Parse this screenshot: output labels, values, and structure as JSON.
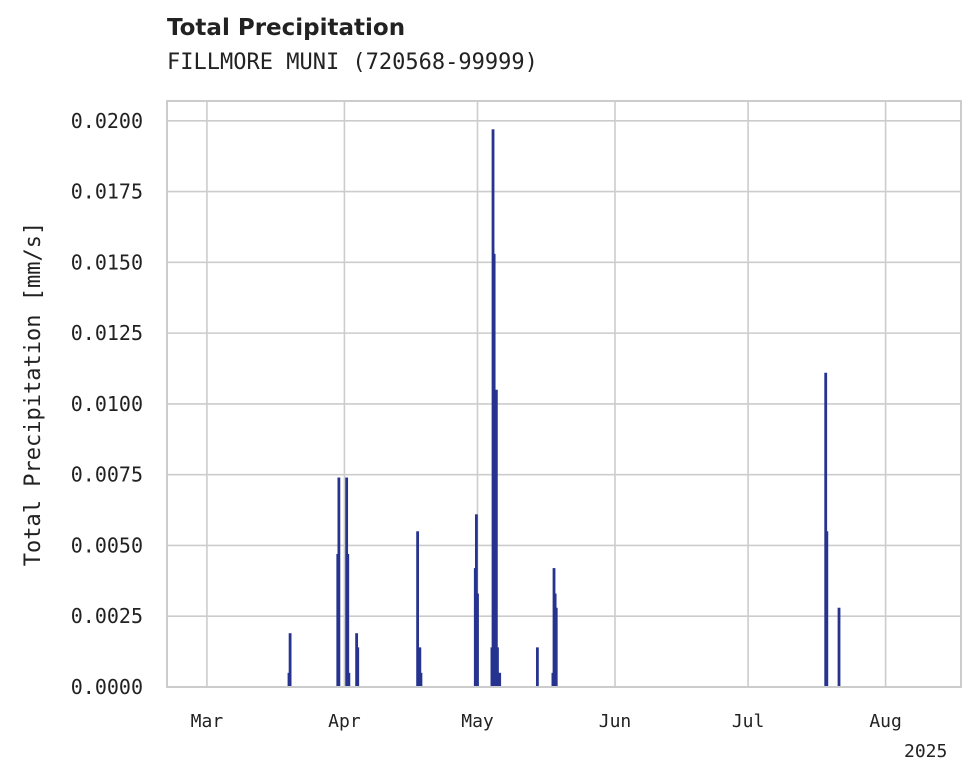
{
  "chart_data": {
    "type": "bar",
    "title": "Total Precipitation",
    "subtitle": "FILLMORE MUNI (720568-99999)",
    "ylabel": "Total Precipitation [mm/s]",
    "xlabel": "",
    "x_year_label": "2025",
    "ylim": [
      0,
      0.0207
    ],
    "xlim": [
      "2025-02-20",
      "2025-08-18"
    ],
    "yticks": [
      0.0,
      0.0025,
      0.005,
      0.0075,
      0.01,
      0.0125,
      0.015,
      0.0175,
      0.02
    ],
    "ytick_labels": [
      "0.0000",
      "0.0025",
      "0.0050",
      "0.0075",
      "0.0100",
      "0.0125",
      "0.0150",
      "0.0175",
      "0.0200"
    ],
    "xticks": [
      {
        "date": "2025-03-01",
        "label": "Mar"
      },
      {
        "date": "2025-04-01",
        "label": "Apr"
      },
      {
        "date": "2025-05-01",
        "label": "May"
      },
      {
        "date": "2025-06-01",
        "label": "Jun"
      },
      {
        "date": "2025-07-01",
        "label": "Jul"
      },
      {
        "date": "2025-08-01",
        "label": "Aug"
      }
    ],
    "grid": true,
    "color": "#26338f",
    "series": [
      {
        "values": [
          {
            "x": "2025-03-19 12:00",
            "y": 0.0005
          },
          {
            "x": "2025-03-19 18:00",
            "y": 0.0019
          },
          {
            "x": "2025-03-30 12:00",
            "y": 0.0047
          },
          {
            "x": "2025-03-30 18:00",
            "y": 0.0074
          },
          {
            "x": "2025-04-01 12:00",
            "y": 0.0074
          },
          {
            "x": "2025-04-01 18:00",
            "y": 0.0047
          },
          {
            "x": "2025-04-02 00:00",
            "y": 0.0005
          },
          {
            "x": "2025-04-03 18:00",
            "y": 0.0019
          },
          {
            "x": "2025-04-04 00:00",
            "y": 0.0014
          },
          {
            "x": "2025-04-17 12:00",
            "y": 0.0055
          },
          {
            "x": "2025-04-18 00:00",
            "y": 0.0014
          },
          {
            "x": "2025-04-18 06:00",
            "y": 0.0005
          },
          {
            "x": "2025-04-30 12:00",
            "y": 0.0042
          },
          {
            "x": "2025-04-30 18:00",
            "y": 0.0061
          },
          {
            "x": "2025-05-01 00:00",
            "y": 0.0033
          },
          {
            "x": "2025-05-04 06:00",
            "y": 0.0014
          },
          {
            "x": "2025-05-04 12:00",
            "y": 0.0197
          },
          {
            "x": "2025-05-04 18:00",
            "y": 0.0153
          },
          {
            "x": "2025-05-05 00:00",
            "y": 0.0028
          },
          {
            "x": "2025-05-05 06:00",
            "y": 0.0105
          },
          {
            "x": "2025-05-05 12:00",
            "y": 0.0014
          },
          {
            "x": "2025-05-05 18:00",
            "y": 0.0005
          },
          {
            "x": "2025-05-06 00:00",
            "y": 0.0005
          },
          {
            "x": "2025-05-14 12:00",
            "y": 0.0014
          },
          {
            "x": "2025-05-18 00:00",
            "y": 0.0005
          },
          {
            "x": "2025-05-18 06:00",
            "y": 0.0042
          },
          {
            "x": "2025-05-18 12:00",
            "y": 0.0033
          },
          {
            "x": "2025-05-18 18:00",
            "y": 0.0028
          },
          {
            "x": "2025-07-18 12:00",
            "y": 0.0111
          },
          {
            "x": "2025-07-18 18:00",
            "y": 0.0055
          },
          {
            "x": "2025-07-21 12:00",
            "y": 0.0028
          }
        ]
      }
    ]
  }
}
